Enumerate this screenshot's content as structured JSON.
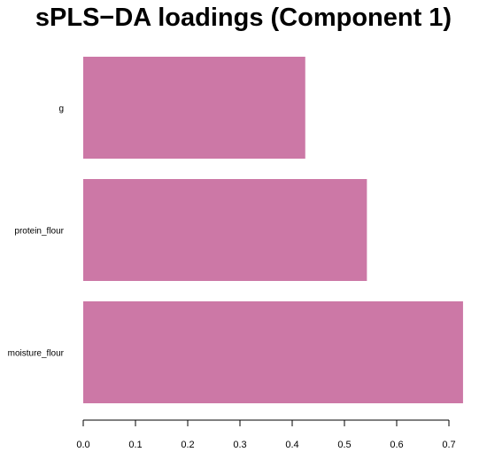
{
  "chart_data": {
    "type": "bar",
    "orientation": "horizontal",
    "title": "sPLS−DA loadings (Component 1)",
    "xlabel": "",
    "ylabel": "",
    "categories": [
      "g",
      "protein_flour",
      "moisture_flour"
    ],
    "values": [
      0.425,
      0.543,
      0.727
    ],
    "xlim": [
      0.0,
      0.7
    ],
    "xticks": [
      "0.0",
      "0.1",
      "0.2",
      "0.3",
      "0.4",
      "0.5",
      "0.6",
      "0.7"
    ],
    "bar_color": "#CC78A6",
    "grid": false,
    "legend": "none"
  }
}
